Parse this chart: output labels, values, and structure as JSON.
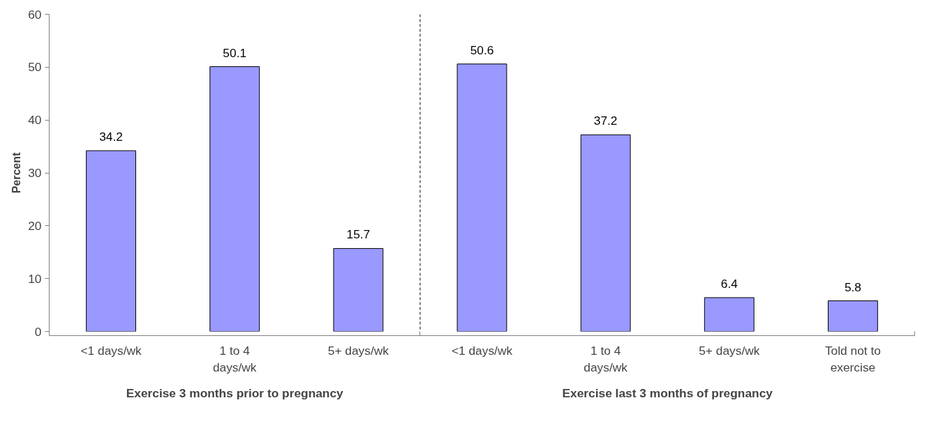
{
  "chart_data": {
    "type": "bar",
    "ylabel": "Percent",
    "categories": [
      "<1 days/wk",
      "1 to 4\ndays/wk",
      "5+ days/wk",
      "<1 days/wk",
      "1 to 4\ndays/wk",
      "5+ days/wk",
      "Told not to\nexercise"
    ],
    "values": [
      34.2,
      50.1,
      15.7,
      50.6,
      37.2,
      6.4,
      5.8
    ],
    "color": "#9999ff",
    "ylim": [
      0,
      60
    ],
    "yticks": [
      0,
      10,
      20,
      30,
      40,
      50,
      60
    ],
    "data_labels": true,
    "grid": false,
    "annotations": [
      "Exercise 3 months prior to pregnancy",
      "Exercise last 3 months of pregnancy"
    ]
  }
}
